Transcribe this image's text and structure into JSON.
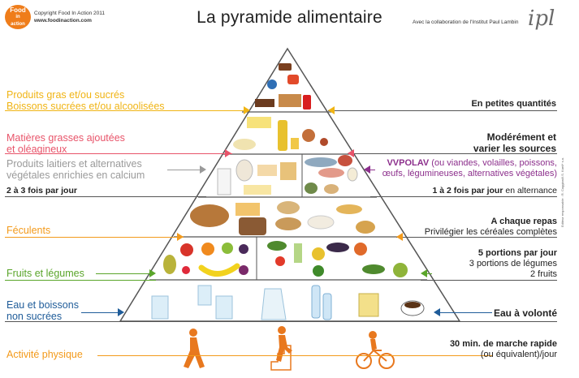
{
  "header": {
    "logo_line1": "Food",
    "logo_line2": "in",
    "logo_line3": "action",
    "copyright": "Copyright Food In Action 2011",
    "website": "www.foodinaction.com",
    "title": "La pyramide alimentaire",
    "collaboration": "Avec la collaboration de l'Institut Paul Lambin",
    "partner_logo": "ipl",
    "legal": "Editeur responsable : R. Caggiani/I.S. Kaeli* s.a."
  },
  "levels": {
    "sweets": {
      "label_line1": "Produits gras et/ou sucrés",
      "label_line2": "Boissons sucrées et/ou alcoolisées",
      "advice": "En petites quantités",
      "color": "#f0b414"
    },
    "fats": {
      "label_line1": "Matières grasses ajoutées",
      "label_line2": "et oléagineux",
      "advice_line1": "Modérément et",
      "advice_line2": "varier les sources",
      "color": "#e8546a"
    },
    "dairy": {
      "label_line1": "Produits laitiers et alternatives",
      "label_line2": "végétales enrichies en calcium",
      "frequency_bold": "2 à 3 fois par jour",
      "color": "#9a9a9a"
    },
    "protein": {
      "acronym": "VVPOLAV",
      "detail_line1": "(ou viandes, volailles, poissons,",
      "detail_line2": "œufs, légumineuses, alternatives végétales)",
      "frequency_bold": "1 à 2 fois par jour",
      "frequency_rest": " en alternance",
      "color": "#8c2f8c"
    },
    "starch": {
      "label": "Féculents",
      "advice_line1": "A chaque repas",
      "advice_line2": "Privilégier les céréales complètes",
      "color": "#f39a1b"
    },
    "fruitveg": {
      "label": "Fruits et légumes",
      "advice_line1": "5 portions par jour",
      "advice_line2": "3 portions de légumes",
      "advice_line3": "2 fruits",
      "color": "#5aa52a"
    },
    "water": {
      "label_line1": "Eau et boissons",
      "label_line2": "non sucrées",
      "advice": "Eau à volonté",
      "color": "#1f5c99"
    },
    "activity": {
      "label": "Activité physique",
      "advice_line1": "30 min. de marche rapide",
      "advice_line2": "(ou équivalent)/jour",
      "color": "#f39a1b"
    }
  },
  "icons": {
    "walker": "walking-person-icon",
    "stairs": "stairs-climber-icon",
    "cyclist": "cyclist-icon"
  }
}
